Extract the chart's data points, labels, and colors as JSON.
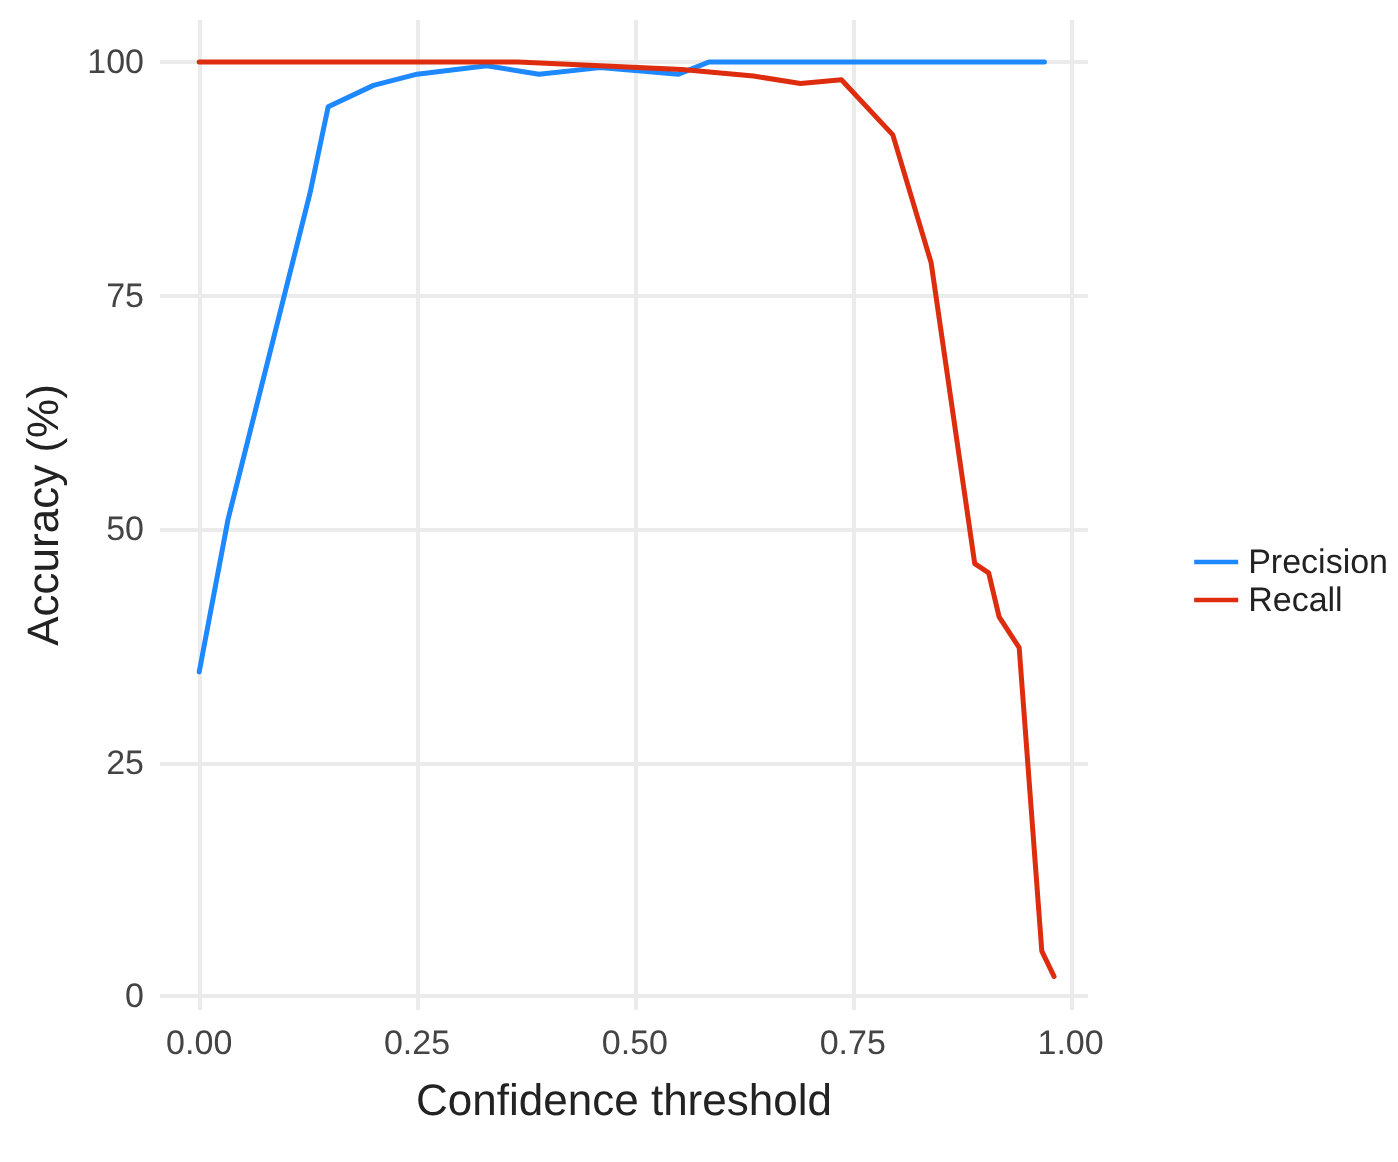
{
  "chart_data": {
    "type": "line",
    "xlabel": "Confidence threshold",
    "ylabel": "Accuracy (%)",
    "xlim": [
      -0.045,
      1.02
    ],
    "xticks": [
      {
        "value": 0,
        "label": "0.00"
      },
      {
        "value": 0.25,
        "label": "0.25"
      },
      {
        "value": 0.5,
        "label": "0.50"
      },
      {
        "value": 0.75,
        "label": "0.75"
      },
      {
        "value": 1,
        "label": "1.00"
      }
    ],
    "ylim": [
      -1.5,
      104.5
    ],
    "yticks": [
      0,
      25,
      50,
      75,
      100
    ],
    "grid": true,
    "legend": "right",
    "line_style": "solid",
    "marker": "none",
    "series": [
      {
        "name": "Precision",
        "color": "#1e88ff",
        "x": [
          0,
          0.033,
          0.127,
          0.148,
          0.2,
          0.25,
          0.33,
          0.39,
          0.46,
          0.55,
          0.585,
          0.97
        ],
        "values": [
          34.7,
          51,
          85.9,
          95.2,
          97.5,
          98.7,
          99.6,
          98.7,
          99.4,
          98.7,
          100,
          100
        ]
      },
      {
        "name": "Recall",
        "color": "#dd2c0e",
        "x": [
          0,
          0.366,
          0.554,
          0.636,
          0.69,
          0.737,
          0.796,
          0.84,
          0.89,
          0.906,
          0.918,
          0.941,
          0.967,
          0.981
        ],
        "values": [
          100,
          100,
          99.2,
          98.5,
          97.7,
          98.1,
          92.2,
          78.5,
          46.3,
          45.3,
          40.6,
          37.3,
          4.8,
          2.1
        ]
      }
    ]
  }
}
